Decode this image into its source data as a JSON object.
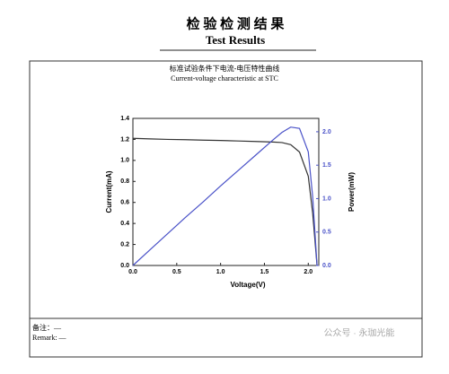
{
  "header": {
    "title": "检 验 检 测 结 果",
    "subtitle": "Test Results"
  },
  "chart_data": {
    "type": "line",
    "title": "标准试验条件下电流-电压特性曲线",
    "subtitle": "Current-voltage characteristic at STC",
    "x_label": "Voltage(V)",
    "y_label": "Current(mA)",
    "y2_label": "Power(mW)",
    "x": [
      0,
      0.2,
      0.4,
      0.6,
      0.8,
      1.0,
      1.2,
      1.4,
      1.6,
      1.7,
      1.8,
      1.9,
      2.0,
      2.05,
      2.1
    ],
    "series": [
      {
        "color": "#333333",
        "values": [
          1.21,
          1.205,
          1.2,
          1.197,
          1.193,
          1.19,
          1.185,
          1.18,
          1.175,
          1.17,
          1.15,
          1.08,
          0.85,
          0.5,
          0
        ]
      },
      {
        "color": "#4a52c8",
        "axis": "y2",
        "values": [
          0,
          0.24,
          0.48,
          0.72,
          0.95,
          1.19,
          1.42,
          1.65,
          1.88,
          1.99,
          2.07,
          2.05,
          1.7,
          1.03,
          0
        ]
      }
    ],
    "xlim": [
      0,
      2.12
    ],
    "ylim": [
      0,
      1.4
    ],
    "y2lim": [
      0,
      2.2
    ],
    "xticks": [
      {
        "value": 0,
        "label": "0.0"
      },
      0.5,
      {
        "value": 1,
        "label": "1.0"
      },
      1.5,
      {
        "value": 2,
        "label": "2.0"
      }
    ],
    "yticks": [
      {
        "value": 0,
        "label": "0.0"
      },
      0.2,
      0.4,
      0.6,
      0.8,
      {
        "value": 1,
        "label": "1.0"
      },
      1.2,
      1.4
    ],
    "y2ticks": [
      {
        "value": 0,
        "label": "0.0"
      },
      0.5,
      {
        "value": 1,
        "label": "1.0"
      },
      1.5,
      {
        "value": 2,
        "label": "2.0"
      }
    ],
    "grid": false
  },
  "footer": {
    "note": "备注：—",
    "remark": "Remark: —"
  },
  "watermark": "公众号 · 永珈光能"
}
